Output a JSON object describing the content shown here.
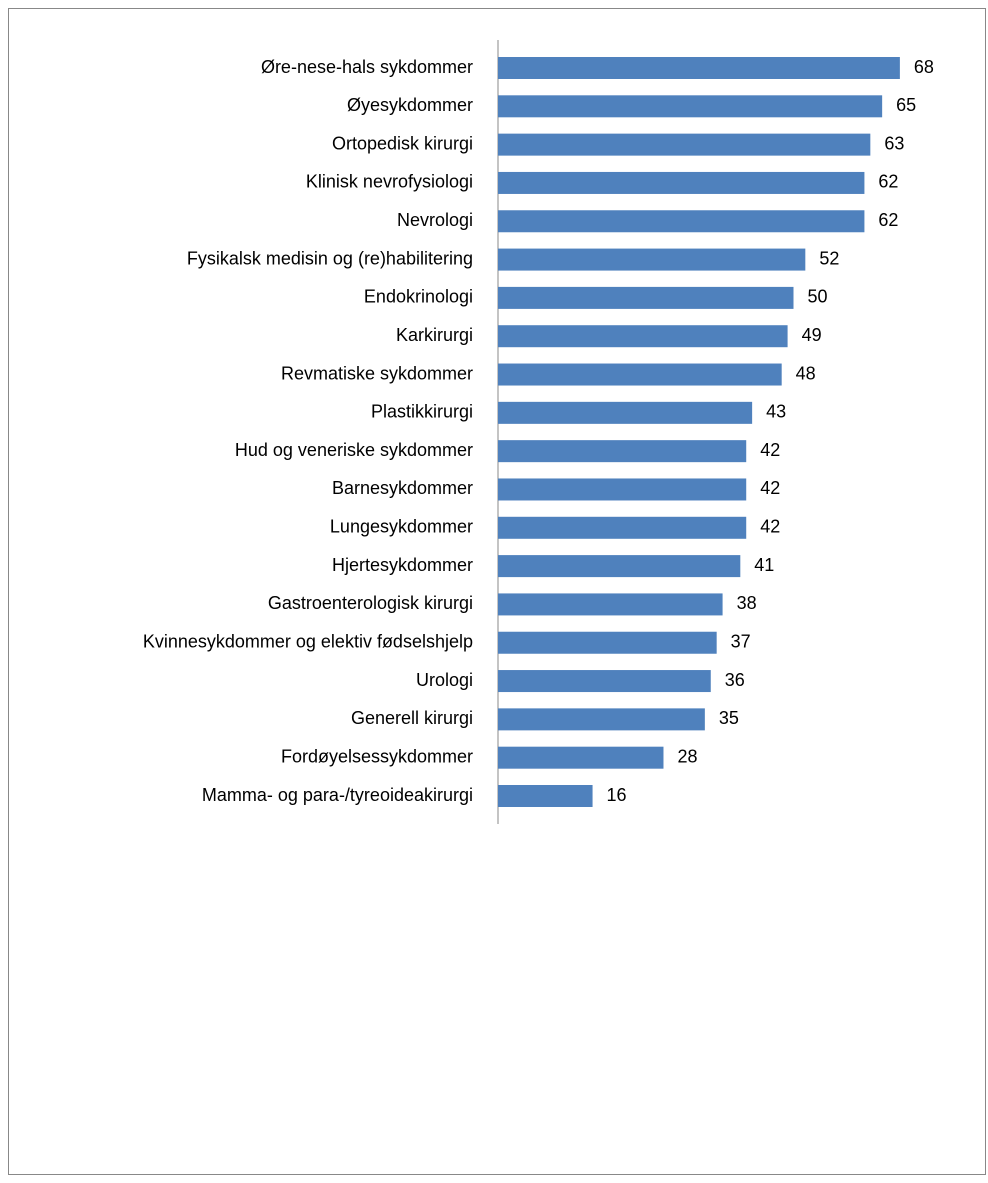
{
  "chart_data": {
    "type": "bar",
    "orientation": "horizontal",
    "color": "#4f81bd",
    "categories": [
      "Øre-nese-hals sykdommer",
      "Øyesykdommer",
      "Ortopedisk kirurgi",
      "Klinisk nevrofysiologi",
      "Nevrologi",
      "Fysikalsk medisin og (re)habilitering",
      "Endokrinologi",
      "Karkirurgi",
      "Revmatiske sykdommer",
      "Plastikkirurgi",
      "Hud og veneriske sykdommer",
      "Barnesykdommer",
      "Lungesykdommer",
      "Hjertesykdommer",
      "Gastroenterologisk kirurgi",
      "Kvinnesykdommer og elektiv fødselshjelp",
      "Urologi",
      "Generell kirurgi",
      "Fordøyelsessykdommer",
      "Mamma- og para-/tyreoideakirurgi"
    ],
    "values": [
      68,
      65,
      63,
      62,
      62,
      52,
      50,
      49,
      48,
      43,
      42,
      42,
      42,
      41,
      38,
      37,
      36,
      35,
      28,
      16
    ]
  }
}
